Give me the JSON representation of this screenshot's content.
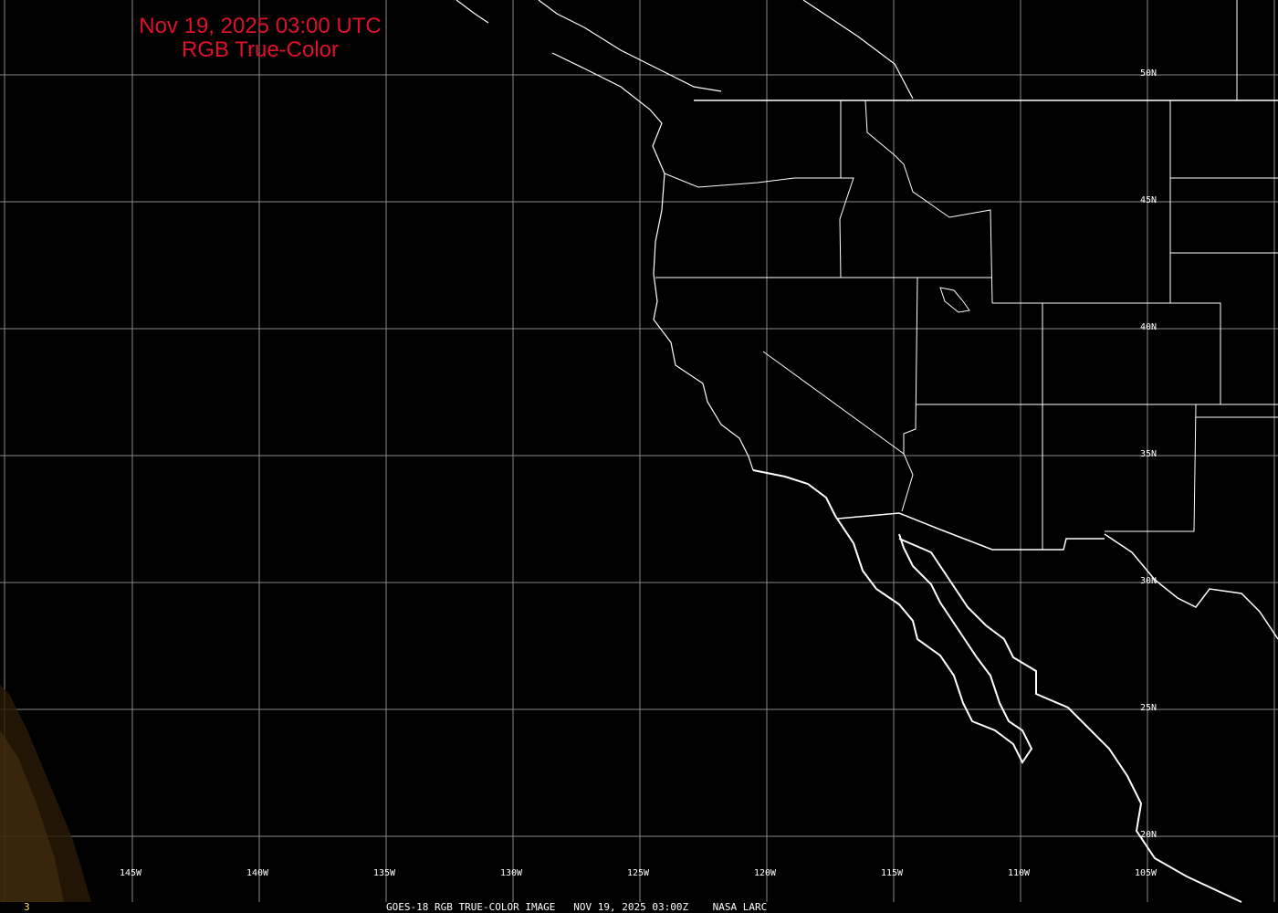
{
  "title": {
    "line1": "Nov 19, 2025 03:00 UTC",
    "line2": "RGB True-Color"
  },
  "caption": "GOES-18 RGB TRUE-COLOR IMAGE   NOV 19, 2025 03:00Z    NASA LARC",
  "frame_number": "3",
  "longitude_labels": [
    "145W",
    "140W",
    "135W",
    "130W",
    "125W",
    "120W",
    "115W",
    "110W",
    "105W"
  ],
  "latitude_labels": [
    "50N",
    "45N",
    "40N",
    "35N",
    "30N",
    "25N",
    "20N"
  ],
  "colors": {
    "title": "#e0102a",
    "grid": "#8a8a8a",
    "boundaries": "#ffffff",
    "background": "#000000"
  }
}
